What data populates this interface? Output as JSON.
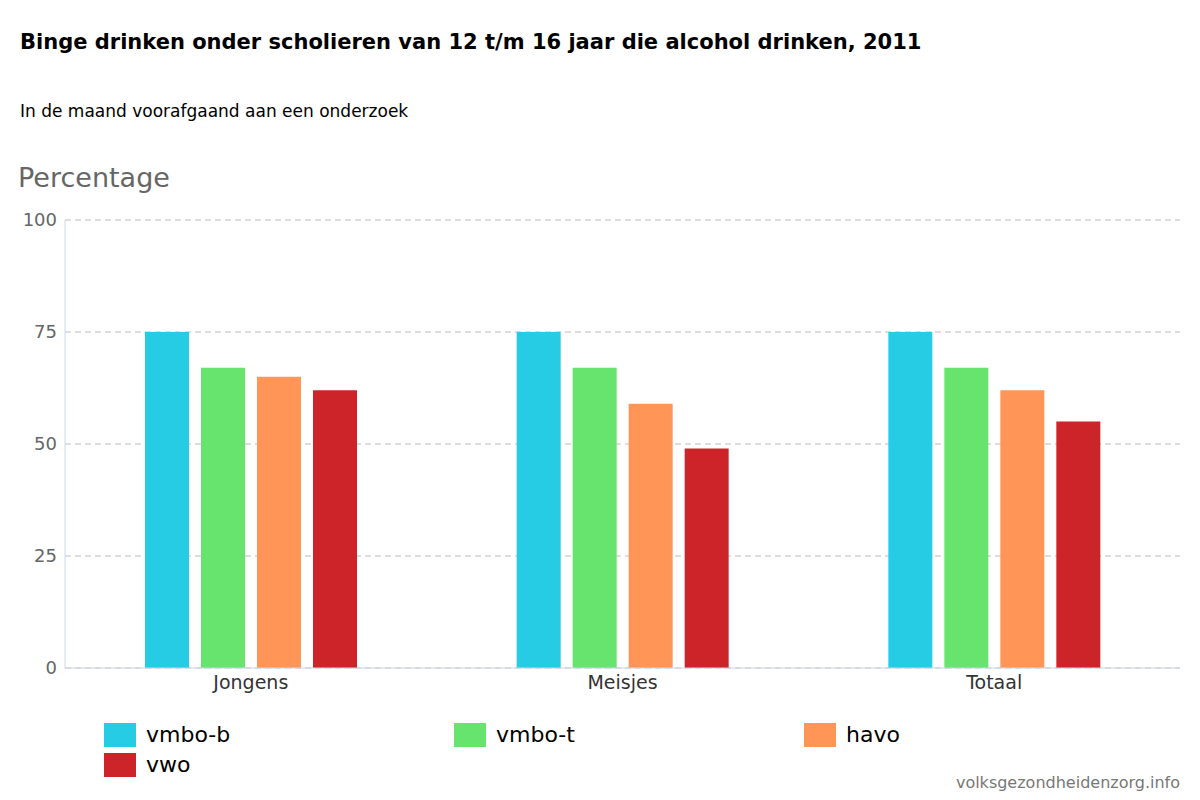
{
  "chart_data": {
    "type": "bar",
    "title": "Binge drinken onder scholieren van 12 t/m 16 jaar die alcohol drinken, 2011",
    "subtitle": "In de maand voorafgaand aan een onderzoek",
    "y_label": "Percentage",
    "source": "volksgezondheidenzorg.info",
    "categories": [
      "Jongens",
      "Meisjes",
      "Totaal"
    ],
    "series": [
      {
        "name": "vmbo-b",
        "color": "#26cce4",
        "values": [
          75,
          75,
          75
        ]
      },
      {
        "name": "vmbo-t",
        "color": "#66e46e",
        "values": [
          67,
          67,
          67
        ]
      },
      {
        "name": "havo",
        "color": "#ff9658",
        "values": [
          65,
          59,
          62
        ]
      },
      {
        "name": "vwo",
        "color": "#cc2429",
        "values": [
          62,
          49,
          55
        ]
      }
    ],
    "ylim": [
      0,
      100
    ],
    "yticks": [
      0,
      25,
      50,
      75,
      100
    ],
    "grid": true,
    "legend": "bottom"
  }
}
